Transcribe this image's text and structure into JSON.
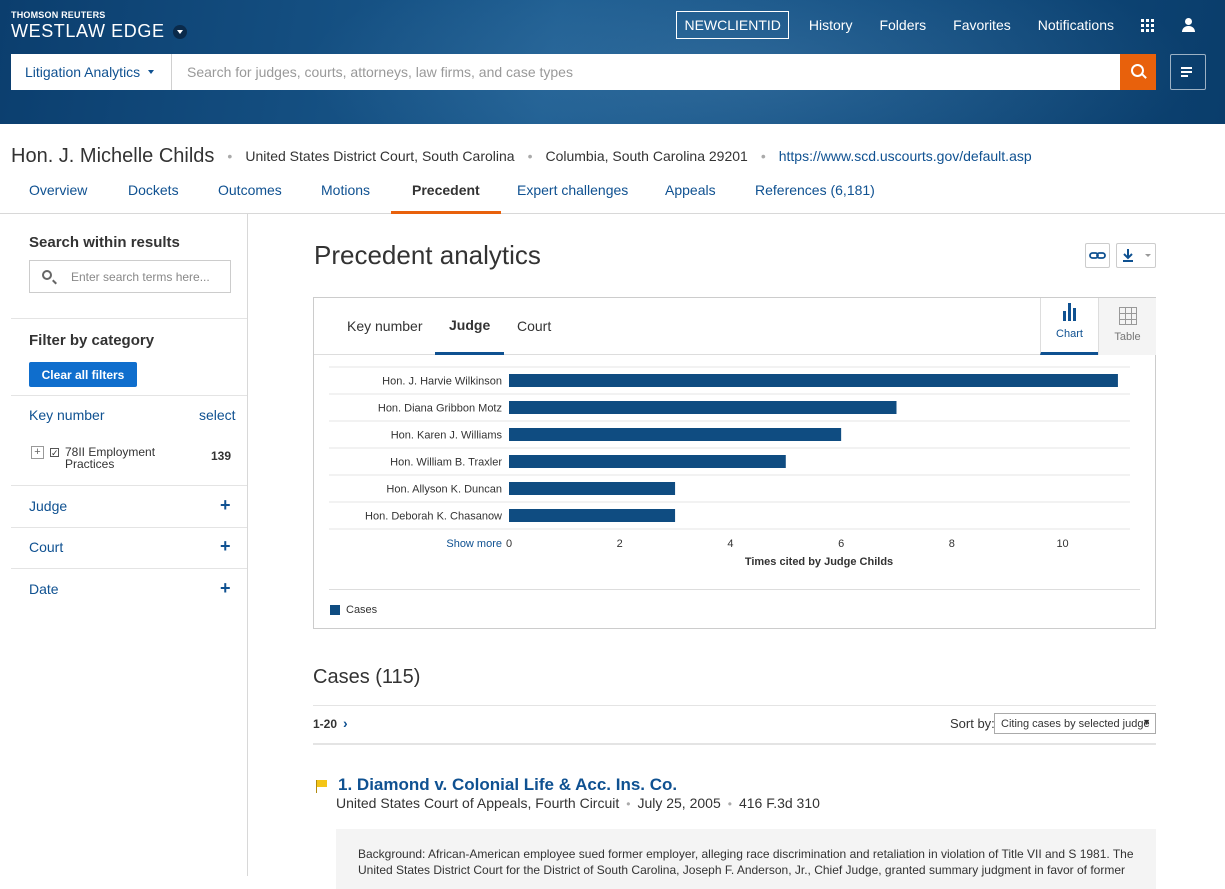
{
  "brand": {
    "company": "THOMSON REUTERS",
    "product": "WESTLAW EDGE"
  },
  "topnav": {
    "client": "NEWCLIENTID",
    "links": [
      "History",
      "Folders",
      "Favorites",
      "Notifications"
    ]
  },
  "search": {
    "scope": "Litigation Analytics",
    "placeholder": "Search for judges, courts, attorneys, law firms, and case types"
  },
  "judge": {
    "name": "Hon. J. Michelle Childs",
    "court": "United States District Court, South Carolina",
    "location": "Columbia, South Carolina 29201",
    "url": "https://www.scd.uscourts.gov/default.asp"
  },
  "tabs": [
    "Overview",
    "Dockets",
    "Outcomes",
    "Motions",
    "Precedent",
    "Expert challenges",
    "Appeals",
    "References (6,181)"
  ],
  "sidebar": {
    "search_title": "Search within results",
    "search_placeholder": "Enter search terms here...",
    "filter_title": "Filter by category",
    "clear_label": "Clear all filters",
    "key_number": "Key number",
    "select": "select",
    "kn_item": {
      "label": "78II Employment Practices",
      "count": "139"
    },
    "categories": [
      "Judge",
      "Court",
      "Date"
    ]
  },
  "page_title": "Precedent analytics",
  "chart_tabs": [
    "Key number",
    "Judge",
    "Court"
  ],
  "view_toggle": {
    "chart": "Chart",
    "table": "Table"
  },
  "chart_data": {
    "type": "bar",
    "orientation": "horizontal",
    "categories": [
      "Hon. J. Harvie Wilkinson",
      "Hon. Diana Gribbon Motz",
      "Hon. Karen J. Williams",
      "Hon. William B. Traxler",
      "Hon. Allyson K. Duncan",
      "Hon. Deborah K. Chasanow"
    ],
    "series": [
      {
        "name": "Cases",
        "values": [
          11,
          7,
          6,
          5,
          3,
          3
        ]
      }
    ],
    "xlabel": "Times cited by Judge Childs",
    "xticks": [
      0,
      2,
      4,
      6,
      8,
      10
    ],
    "xlim": [
      0,
      11.2
    ],
    "bar_color": "#0f4c81",
    "legend": "bottom-left",
    "show_more": "Show more"
  },
  "cases": {
    "heading": "Cases (115)",
    "range": "1-20",
    "sort_label": "Sort by:",
    "sort_value": "Citing cases by selected judge",
    "items": [
      {
        "number": "1.",
        "title": "Diamond v. Colonial Life & Acc. Ins. Co.",
        "court": "United States Court of Appeals, Fourth Circuit",
        "date": "July 25, 2005",
        "cite": "416 F.3d 310",
        "snippet": "Background: African-American employee sued former employer, alleging race discrimination and retaliation in violation of Title VII and S 1981. The United States District Court for the District of South Carolina, Joseph F. Anderson, Jr., Chief Judge, granted summary judgment in favor of former"
      }
    ]
  }
}
